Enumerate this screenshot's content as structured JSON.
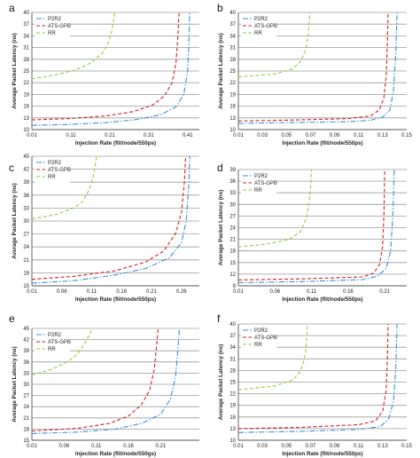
{
  "chart_data": [
    {
      "panel": "a",
      "type": "line",
      "xlabel": "Injection Rate (flit/node/550ps)",
      "ylabel": "Average Packet Latency (ns)",
      "xlim": [
        0.01,
        0.44
      ],
      "ylim": [
        10,
        40
      ],
      "xticks": [
        0.01,
        0.11,
        0.21,
        0.31,
        0.41
      ],
      "yticks": [
        10,
        13,
        16,
        19,
        22,
        25,
        28,
        31,
        34,
        37,
        40
      ],
      "legend_position": "top-left",
      "series": [
        {
          "name": "P2R2",
          "color": "#3c8fd6",
          "dash": "dashdot",
          "x": [
            0.01,
            0.1,
            0.2,
            0.28,
            0.34,
            0.38,
            0.4,
            0.41,
            0.413,
            0.415
          ],
          "y": [
            11.1,
            11.3,
            11.8,
            12.6,
            13.8,
            15.8,
            19.0,
            25.0,
            32.0,
            40.0
          ]
        },
        {
          "name": "ATS-GPB",
          "color": "#d21f26",
          "dash": "dash",
          "x": [
            0.01,
            0.1,
            0.2,
            0.27,
            0.32,
            0.35,
            0.37,
            0.38,
            0.385,
            0.388
          ],
          "y": [
            12.5,
            12.8,
            13.5,
            14.6,
            16.3,
            18.6,
            22.0,
            27.0,
            34.0,
            40.0
          ]
        },
        {
          "name": "RR",
          "color": "#8fcf3a",
          "dash": "dash",
          "x": [
            0.01,
            0.07,
            0.12,
            0.16,
            0.19,
            0.205,
            0.215,
            0.22,
            0.222
          ],
          "y": [
            23.0,
            24.0,
            25.2,
            27.0,
            29.5,
            32.0,
            35.0,
            38.0,
            40.0
          ]
        }
      ]
    },
    {
      "panel": "b",
      "type": "line",
      "xlabel": "Injection Rate (flit/node/550ps)",
      "ylabel": "Average Packet Latency (ns)",
      "xlim": [
        0.01,
        0.15
      ],
      "ylim": [
        10,
        40
      ],
      "xticks": [
        0.01,
        0.03,
        0.05,
        0.07,
        0.09,
        0.11,
        0.13,
        0.15
      ],
      "yticks": [
        10,
        13,
        16,
        19,
        22,
        25,
        28,
        31,
        34,
        37,
        40
      ],
      "legend_position": "top-left",
      "series": [
        {
          "name": "P2R2",
          "color": "#3c8fd6",
          "dash": "dashdot",
          "x": [
            0.01,
            0.05,
            0.1,
            0.12,
            0.13,
            0.136,
            0.139,
            0.141,
            0.142
          ],
          "y": [
            11.6,
            11.8,
            12.0,
            12.4,
            13.2,
            15.0,
            20.0,
            30.0,
            40.0
          ]
        },
        {
          "name": "ATS-GPB",
          "color": "#d21f26",
          "dash": "dash",
          "x": [
            0.01,
            0.05,
            0.1,
            0.12,
            0.127,
            0.131,
            0.133,
            0.134,
            0.1345
          ],
          "y": [
            12.2,
            12.4,
            12.8,
            13.5,
            15.0,
            18.0,
            24.0,
            33.0,
            40.0
          ]
        },
        {
          "name": "RR",
          "color": "#8fcf3a",
          "dash": "dash",
          "x": [
            0.01,
            0.04,
            0.055,
            0.062,
            0.066,
            0.068,
            0.069,
            0.0695
          ],
          "y": [
            23.5,
            24.2,
            25.5,
            27.5,
            30.5,
            34.0,
            38.0,
            40.0
          ]
        }
      ]
    },
    {
      "panel": "c",
      "type": "line",
      "xlabel": "Injection Rate (flit/node/550ps)",
      "ylabel": "Average Packet Latency (ns)",
      "xlim": [
        0.01,
        0.29
      ],
      "ylim": [
        15,
        45
      ],
      "xticks": [
        0.01,
        0.06,
        0.11,
        0.16,
        0.21,
        0.26
      ],
      "yticks": [
        15,
        18,
        21,
        24,
        27,
        30,
        33,
        36,
        39,
        42,
        45
      ],
      "legend_position": "top-left",
      "series": [
        {
          "name": "P2R2",
          "color": "#3c8fd6",
          "dash": "dashdot",
          "x": [
            0.01,
            0.08,
            0.15,
            0.2,
            0.24,
            0.26,
            0.268,
            0.272,
            0.274
          ],
          "y": [
            15.6,
            16.2,
            17.5,
            19.0,
            21.5,
            25.0,
            30.0,
            38.0,
            45.0
          ]
        },
        {
          "name": "ATS-GPB",
          "color": "#d21f26",
          "dash": "dash",
          "x": [
            0.01,
            0.08,
            0.15,
            0.2,
            0.23,
            0.25,
            0.26,
            0.265,
            0.267
          ],
          "y": [
            16.5,
            17.2,
            18.5,
            20.5,
            23.0,
            27.0,
            32.0,
            39.0,
            45.0
          ]
        },
        {
          "name": "RR",
          "color": "#8fcf3a",
          "dash": "dash",
          "x": [
            0.01,
            0.05,
            0.08,
            0.095,
            0.105,
            0.112,
            0.116,
            0.118
          ],
          "y": [
            30.5,
            31.5,
            33.0,
            34.5,
            37.0,
            40.0,
            43.0,
            45.0
          ]
        }
      ]
    },
    {
      "panel": "d",
      "type": "line",
      "xlabel": "Injection Rate (flit/node/550ps)",
      "ylabel": "Average Packet Latency (ns)",
      "xlim": [
        0.01,
        0.24
      ],
      "ylim": [
        9,
        39
      ],
      "xticks": [
        0.01,
        0.06,
        0.11,
        0.16,
        0.21
      ],
      "yticks": [
        9,
        12,
        15,
        18,
        21,
        24,
        27,
        30,
        33,
        36,
        39
      ],
      "legend_position": "top-left",
      "series": [
        {
          "name": "P2R2",
          "color": "#3c8fd6",
          "dash": "dashdot",
          "x": [
            0.01,
            0.1,
            0.18,
            0.2,
            0.212,
            0.218,
            0.221,
            0.223
          ],
          "y": [
            9.8,
            10.1,
            10.6,
            11.5,
            13.5,
            18.0,
            27.0,
            39.0
          ]
        },
        {
          "name": "ATS-GPB",
          "color": "#d21f26",
          "dash": "dash",
          "x": [
            0.01,
            0.1,
            0.18,
            0.195,
            0.203,
            0.207,
            0.209,
            0.21
          ],
          "y": [
            10.5,
            10.8,
            11.3,
            12.3,
            14.5,
            19.0,
            28.0,
            39.0
          ]
        },
        {
          "name": "RR",
          "color": "#8fcf3a",
          "dash": "dash",
          "x": [
            0.01,
            0.05,
            0.08,
            0.095,
            0.103,
            0.107,
            0.109,
            0.11
          ],
          "y": [
            19.0,
            19.8,
            21.0,
            23.0,
            26.5,
            31.0,
            35.5,
            39.0
          ]
        }
      ]
    },
    {
      "panel": "e",
      "type": "line",
      "xlabel": "Injection Rate (flit/node/550gs)",
      "ylabel": "Average Packet Latency (ns)",
      "xlim": [
        0.01,
        0.27
      ],
      "ylim": [
        15,
        45
      ],
      "xticks": [
        0.01,
        0.06,
        0.11,
        0.16,
        0.21
      ],
      "yticks": [
        15,
        18,
        21,
        24,
        27,
        30,
        33,
        36,
        39,
        42,
        45
      ],
      "legend_position": "top-left",
      "series": [
        {
          "name": "P2R2",
          "color": "#3c8fd6",
          "dash": "dashdot",
          "x": [
            0.01,
            0.08,
            0.14,
            0.18,
            0.21,
            0.225,
            0.233,
            0.237,
            0.239
          ],
          "y": [
            16.8,
            17.2,
            18.0,
            19.5,
            22.0,
            26.0,
            32.0,
            40.0,
            45.0
          ]
        },
        {
          "name": "ATS-GPB",
          "color": "#d21f26",
          "dash": "dash",
          "x": [
            0.01,
            0.08,
            0.13,
            0.16,
            0.18,
            0.193,
            0.2,
            0.204,
            0.206
          ],
          "y": [
            17.5,
            18.2,
            19.5,
            21.5,
            24.5,
            28.5,
            34.0,
            41.0,
            45.0
          ]
        },
        {
          "name": "RR",
          "color": "#8fcf3a",
          "dash": "dash",
          "x": [
            0.01,
            0.04,
            0.065,
            0.08,
            0.09,
            0.097,
            0.101,
            0.103
          ],
          "y": [
            32.5,
            34.0,
            36.0,
            38.0,
            40.5,
            42.5,
            44.0,
            45.0
          ]
        }
      ]
    },
    {
      "panel": "f",
      "type": "line",
      "xlabel": "Injection Rate (flit/node/550ps)",
      "ylabel": "Average Packet Latency (ns)",
      "xlim": [
        0.01,
        0.15
      ],
      "ylim": [
        10,
        40
      ],
      "xticks": [
        0.01,
        0.03,
        0.05,
        0.07,
        0.09,
        0.11,
        0.13,
        0.15
      ],
      "yticks": [
        10,
        13,
        16,
        19,
        22,
        25,
        28,
        31,
        34,
        37,
        40
      ],
      "legend_position": "top-left",
      "series": [
        {
          "name": "P2R2",
          "color": "#3c8fd6",
          "dash": "dashdot",
          "x": [
            0.01,
            0.06,
            0.11,
            0.128,
            0.135,
            0.139,
            0.141,
            0.142
          ],
          "y": [
            12.0,
            12.3,
            12.8,
            13.5,
            15.5,
            20.0,
            29.0,
            40.0
          ]
        },
        {
          "name": "ATS-GPB",
          "color": "#d21f26",
          "dash": "dash",
          "x": [
            0.01,
            0.06,
            0.11,
            0.124,
            0.13,
            0.133,
            0.134,
            0.1345
          ],
          "y": [
            13.0,
            13.3,
            14.0,
            15.0,
            17.5,
            23.0,
            32.0,
            40.0
          ]
        },
        {
          "name": "RR",
          "color": "#8fcf3a",
          "dash": "dash",
          "x": [
            0.01,
            0.04,
            0.055,
            0.061,
            0.064,
            0.066,
            0.067,
            0.0675
          ],
          "y": [
            23.0,
            24.0,
            25.5,
            27.5,
            30.0,
            33.0,
            37.0,
            40.0
          ]
        }
      ]
    }
  ]
}
